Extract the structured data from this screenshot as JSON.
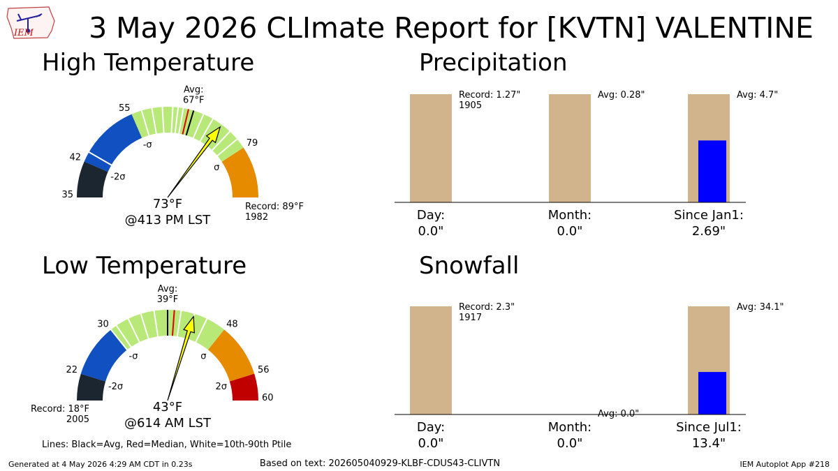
{
  "title": "3 May 2026 CLImate Report for [KVTN] VALENTINE",
  "logo_text": "IEM",
  "colors": {
    "dark": "#1b2631",
    "blue": "#1050c0",
    "green": "#b8e878",
    "orange": "#e68a00",
    "red": "#c00000",
    "bar_bg": "#d2b48c",
    "bar_fg": "#0000ff",
    "needle": "#ffff00"
  },
  "footer": {
    "lines_note": "Lines: Black=Avg, Red=Median, White=10th-90th Ptile",
    "generated": "Generated at 4 May 2026 4:29 AM CDT in 0.23s",
    "based_on": "Based on text: 202605040929-KLBF-CDUS43-CLIVTN",
    "app": "IEM Autoplot App #218"
  },
  "chart_data": [
    {
      "type": "gauge",
      "title": "High Temperature",
      "min": 35,
      "max": 89,
      "value": 73,
      "value_label": "73°F",
      "time_label": "@413 PM LST",
      "avg": 67,
      "avg_label": "Avg:\n67°F",
      "median": 66,
      "ticks": [
        35,
        42,
        55,
        79
      ],
      "bands": [
        {
          "from": 35,
          "to": 42,
          "color": "dark"
        },
        {
          "from": 42,
          "to": 55,
          "color": "blue"
        },
        {
          "from": 55,
          "to": 79,
          "color": "green"
        },
        {
          "from": 79,
          "to": 89,
          "color": "orange"
        }
      ],
      "white_lines": [
        44,
        57,
        59,
        61,
        63,
        64,
        65,
        69,
        71,
        75,
        77
      ],
      "sigma_labels": [
        {
          "at": 42,
          "text": "-2σ"
        },
        {
          "at": 55,
          "text": "-σ"
        },
        {
          "at": 79,
          "text": "σ"
        }
      ],
      "record_label": "Record: 89°F\n1982",
      "record_side": "right"
    },
    {
      "type": "gauge",
      "title": "Low Temperature",
      "min": 18,
      "max": 60,
      "value": 43,
      "value_label": "43°F",
      "time_label": "@614 AM LST",
      "avg": 39,
      "avg_label": "Avg:\n39°F",
      "median": 40,
      "ticks": [
        22,
        30,
        48,
        56,
        60
      ],
      "bands": [
        {
          "from": 18,
          "to": 22,
          "color": "dark"
        },
        {
          "from": 22,
          "to": 30,
          "color": "blue"
        },
        {
          "from": 30,
          "to": 48,
          "color": "green"
        },
        {
          "from": 48,
          "to": 56,
          "color": "orange"
        },
        {
          "from": 56,
          "to": 60,
          "color": "red"
        }
      ],
      "white_lines": [
        30,
        31,
        33,
        35,
        37,
        41,
        43,
        45
      ],
      "sigma_labels": [
        {
          "at": 22,
          "text": "-2σ"
        },
        {
          "at": 30,
          "text": "-σ"
        },
        {
          "at": 48,
          "text": "σ"
        },
        {
          "at": 56,
          "text": "2σ"
        }
      ],
      "record_label": "Record: 18°F\n2005",
      "record_side": "left"
    },
    {
      "type": "bar",
      "title": "Precipitation",
      "categories": [
        "Day:",
        "Month:",
        "Since Jan1:"
      ],
      "observed": [
        0.0,
        0.0,
        2.69
      ],
      "observed_labels": [
        "0.0\"",
        "0.0\"",
        "2.69\""
      ],
      "reference": [
        1.27,
        0.28,
        4.7
      ],
      "annotations": [
        "Record: 1.27\"\n1905",
        "Avg: 0.28\"",
        "Avg: 4.7\""
      ]
    },
    {
      "type": "bar",
      "title": "Snowfall",
      "categories": [
        "Day:",
        "Month:",
        "Since Jul1:"
      ],
      "observed": [
        0.0,
        0.0,
        13.4
      ],
      "observed_labels": [
        "0.0\"",
        "0.0\"",
        "13.4\""
      ],
      "reference": [
        2.3,
        0.0,
        34.1
      ],
      "annotations": [
        "Record: 2.3\"\n1917",
        "Avg: 0.0\"",
        "Avg: 34.1\""
      ]
    }
  ]
}
